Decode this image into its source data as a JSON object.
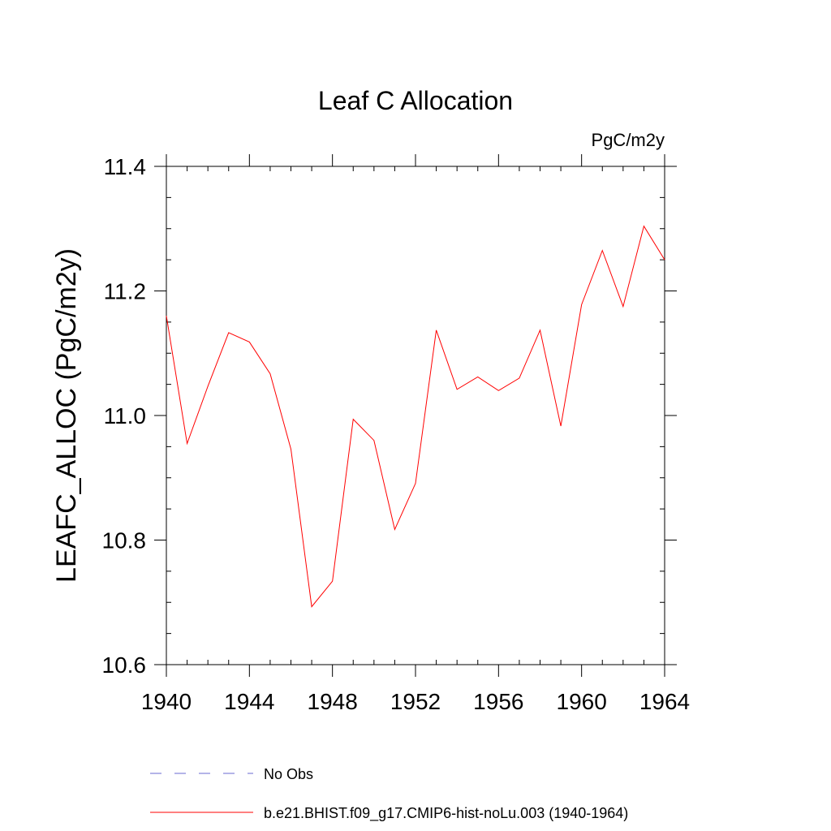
{
  "chart_data": {
    "type": "line",
    "title": "Leaf C Allocation",
    "units_label": "PgC/m2y",
    "ylabel": "LEAFC_ALLOC  (PgC/m2y)",
    "xlabel": "",
    "xlim": [
      1940,
      1964
    ],
    "ylim": [
      10.6,
      11.4
    ],
    "x_ticks": [
      1940,
      1944,
      1948,
      1952,
      1956,
      1960,
      1964
    ],
    "x_tick_labels": [
      "1940",
      "1944",
      "1948",
      "1952",
      "1956",
      "1960",
      "1964"
    ],
    "y_ticks": [
      10.6,
      10.8,
      11.0,
      11.2,
      11.4
    ],
    "y_tick_labels": [
      "10.6",
      "10.8",
      "11.0",
      "11.2",
      "11.4"
    ],
    "grid": false,
    "legend_position": "bottom",
    "series": [
      {
        "name": "b.e21.BHIST.f09_g17.CMIP6-hist-noLu.003 (1940-1964)",
        "color": "#ff0000",
        "dash": "solid",
        "x": [
          1940,
          1941,
          1942,
          1943,
          1944,
          1945,
          1946,
          1947,
          1948,
          1949,
          1950,
          1951,
          1952,
          1953,
          1954,
          1955,
          1956,
          1957,
          1958,
          1959,
          1960,
          1961,
          1962,
          1963,
          1964
        ],
        "y": [
          11.16,
          10.955,
          11.047,
          11.133,
          11.118,
          11.067,
          10.946,
          10.693,
          10.734,
          10.994,
          10.96,
          10.817,
          10.891,
          11.137,
          11.042,
          11.062,
          11.04,
          11.06,
          11.137,
          10.983,
          11.178,
          11.265,
          11.175,
          11.304,
          11.25
        ]
      }
    ],
    "legend": [
      {
        "label": "No Obs",
        "color": "#6a6ad0",
        "dash": "dashed"
      },
      {
        "label": "b.e21.BHIST.f09_g17.CMIP6-hist-noLu.003 (1940-1964)",
        "color": "#ff0000",
        "dash": "solid"
      }
    ]
  }
}
